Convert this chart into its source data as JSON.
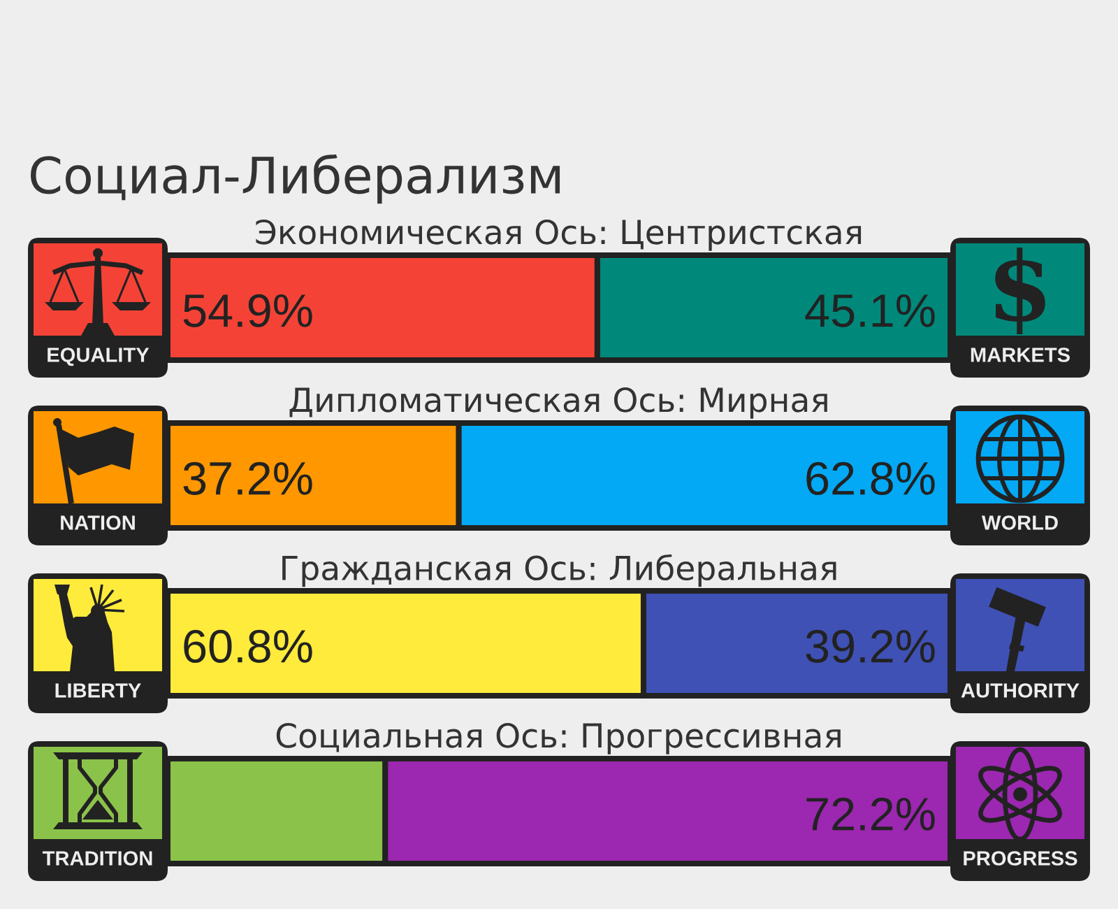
{
  "chart_data": [
    {
      "type": "bar",
      "orientation": "horizontal",
      "stacked": true,
      "title": "Социал-Либерализм",
      "subtitle": "Экономическая Ось: Центристская",
      "categories": [
        null
      ],
      "series": [
        {
          "name": "EQUALITY",
          "color": "#f44336",
          "values": [
            54.9
          ],
          "value_labels": [
            "54.9%"
          ]
        },
        {
          "name": "MARKETS",
          "color": "#00897b",
          "values": [
            45.1
          ],
          "value_labels": [
            "45.1%"
          ]
        }
      ],
      "xlim": [
        0,
        100
      ],
      "tick_labels": false
    },
    {
      "type": "bar",
      "orientation": "horizontal",
      "stacked": true,
      "title": "Дипломатическая Ось: Мирная",
      "categories": [
        null
      ],
      "series": [
        {
          "name": "NATION",
          "color": "#ff9800",
          "values": [
            37.2
          ],
          "value_labels": [
            "37.2%"
          ]
        },
        {
          "name": "WORLD",
          "color": "#03a9f4",
          "values": [
            62.8
          ],
          "value_labels": [
            "62.8%"
          ]
        }
      ],
      "xlim": [
        0,
        100
      ],
      "tick_labels": false
    },
    {
      "type": "bar",
      "orientation": "horizontal",
      "stacked": true,
      "title": "Гражданская Ось: Либеральная",
      "categories": [
        null
      ],
      "series": [
        {
          "name": "LIBERTY",
          "color": "#ffeb3b",
          "values": [
            60.8
          ],
          "value_labels": [
            "60.8%"
          ]
        },
        {
          "name": "AUTHORITY",
          "color": "#3f51b5",
          "values": [
            39.2
          ],
          "value_labels": [
            "39.2%"
          ]
        }
      ],
      "xlim": [
        0,
        100
      ],
      "tick_labels": false
    },
    {
      "type": "bar",
      "orientation": "horizontal",
      "stacked": true,
      "title": "Социальная Ось: Прогрессивная",
      "categories": [
        null
      ],
      "series": [
        {
          "name": "TRADITION",
          "color": "#8bc34a",
          "values": [
            27.8
          ],
          "value_labels": [
            null
          ]
        },
        {
          "name": "PROGRESS",
          "color": "#9c27b0",
          "values": [
            72.2
          ],
          "value_labels": [
            "72.2%"
          ]
        }
      ],
      "xlim": [
        0,
        100
      ],
      "tick_labels": false
    }
  ]
}
